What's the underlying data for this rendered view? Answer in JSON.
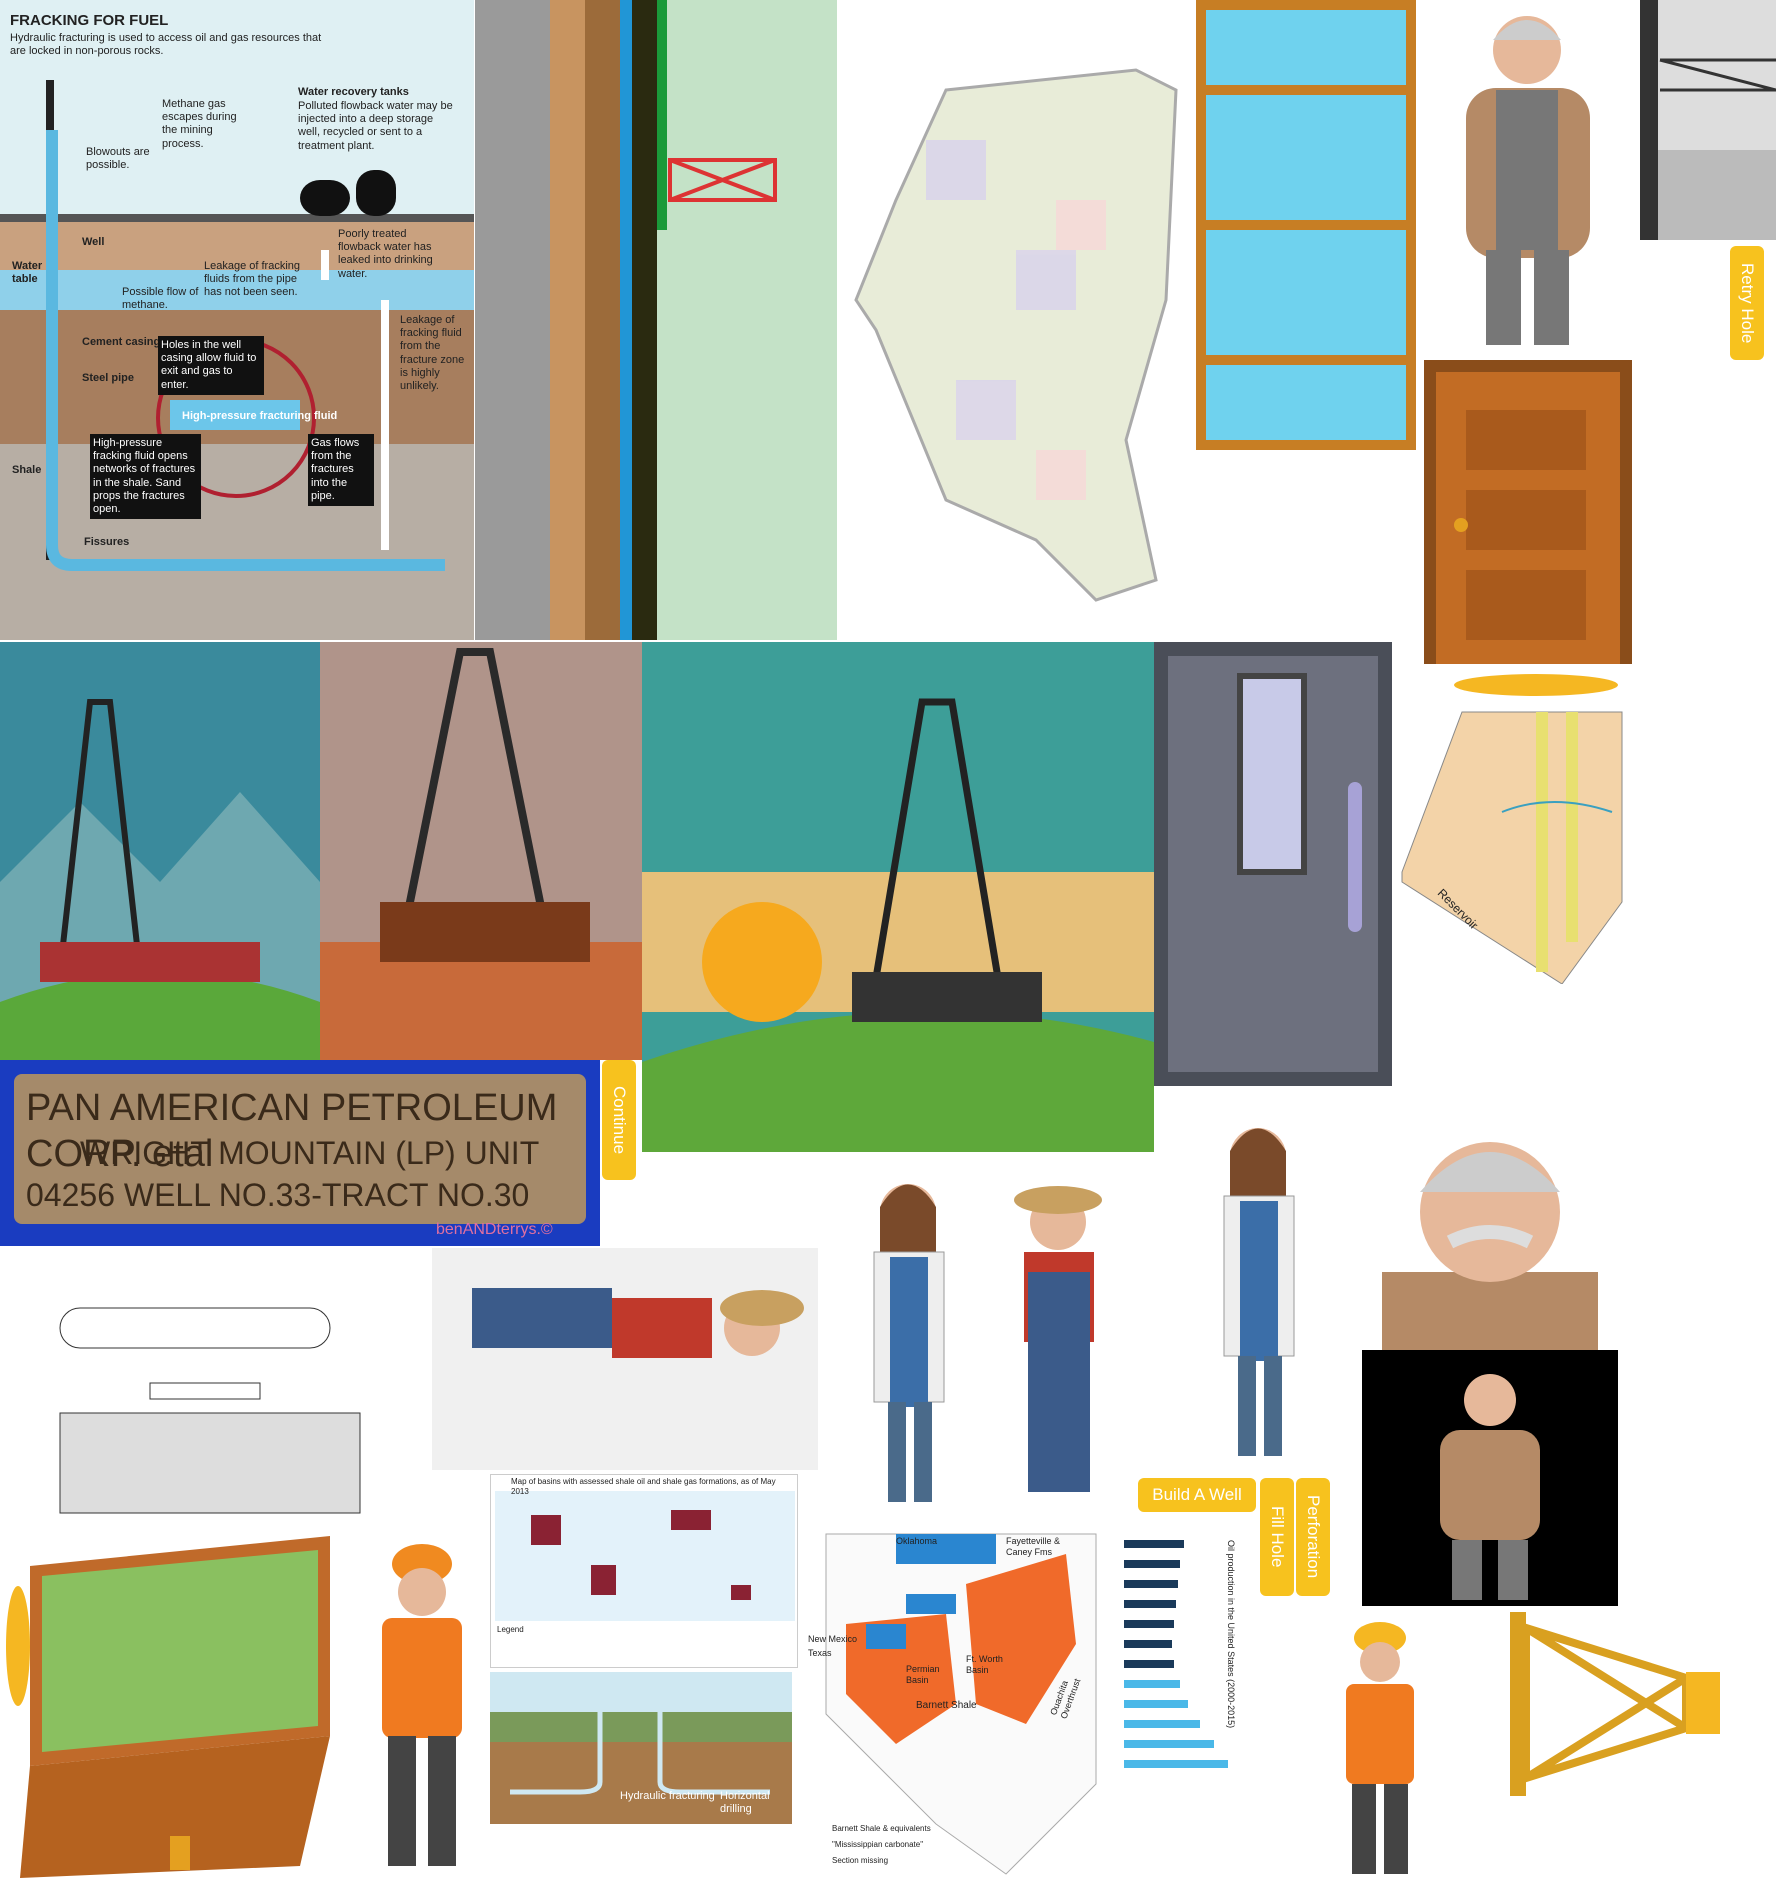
{
  "infographic": {
    "title": "FRACKING FOR FUEL",
    "subtitle": "Hydraulic fracturing is used to access oil and gas resources that are locked in non-porous rocks.",
    "labels": [
      "Methane gas escapes during the mining process.",
      "Water recovery tanks",
      "Polluted flowback water may be injected into a deep storage well, recycled or sent to a treatment plant.",
      "Blowouts are possible.",
      "Well",
      "Water table",
      "Leakage of fracking fluids from the pipe has not been seen.",
      "Poorly treated flowback water has leaked into drinking water.",
      "Possible flow of methane.",
      "Cement casing",
      "Holes in the well casing allow fluid to exit and gas to enter.",
      "Leakage of fracking fluid from the fracture zone is highly unlikely.",
      "Steel pipe",
      "High-pressure fracturing fluid",
      "High-pressure fracking fluid opens networks of fractures in the shale. Sand props the fractures open.",
      "Gas flows from the fractures into the pipe.",
      "Shale",
      "Fissures"
    ]
  },
  "buttons": [
    "Retry Hole",
    "Continue",
    "Build A Well",
    "Fill Hole",
    "Perforation"
  ],
  "plaque": {
    "lines": [
      "PAN AMERICAN PETROLEUM CORP. etal",
      "WRIGHT MOUNTAIN (LP) UNIT",
      "04256 WELL NO.33-TRACT NO.30"
    ],
    "watermark": "benANDterrys.©"
  },
  "world_map": {
    "title": "Map of basins with assessed shale oil and shale gas formations, as of May 2013",
    "legend": "Legend"
  },
  "fracturing_diagram": {
    "labels": [
      "Hydraulic fracturing",
      "Horizontal drilling"
    ]
  },
  "texas_map": {
    "labels": [
      "Oklahoma",
      "Fayetteville & Caney Fms",
      "New Mexico",
      "Texas",
      "Permian Basin",
      "Ft. Worth Basin",
      "Barnett Shale",
      "Ouachita Overthrust"
    ],
    "legend": [
      "Barnett Shale & equivalents",
      "\"Mississippian carbonate\"",
      "Section missing"
    ]
  },
  "oil_chart": {
    "title": "Oil production in the United States (2000-2015)"
  },
  "reservoir": {
    "label": "Reservoir"
  }
}
